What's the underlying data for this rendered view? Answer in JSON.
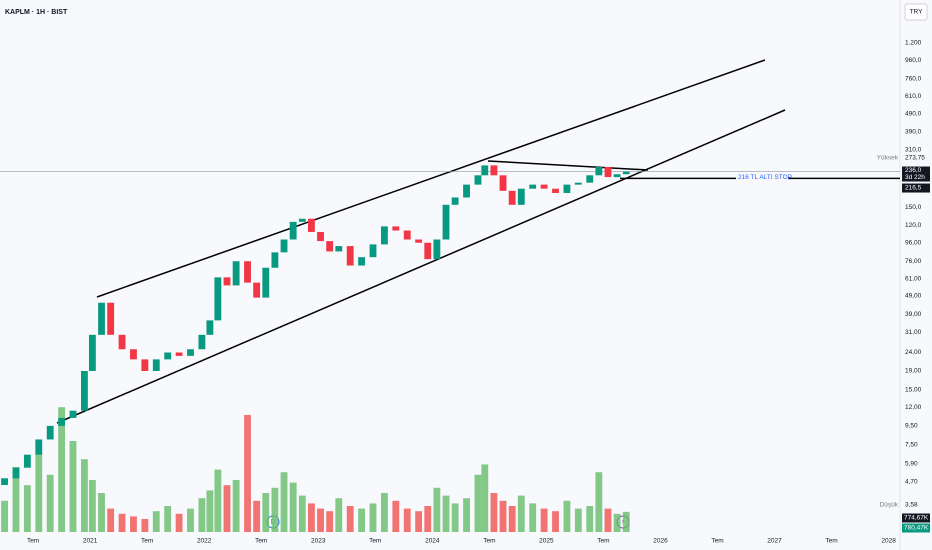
{
  "chart_data": {
    "type": "candlestick",
    "title": "KAPLM · 1H · BIST",
    "currency_button": "TRY",
    "log_scale": true,
    "x": [
      2020.25,
      2020.35,
      2020.45,
      2020.55,
      2020.65,
      2020.75,
      2020.85,
      2020.95,
      2021.02,
      2021.1,
      2021.18,
      2021.28,
      2021.38,
      2021.48,
      2021.58,
      2021.68,
      2021.78,
      2021.88,
      2021.98,
      2022.05,
      2022.12,
      2022.2,
      2022.28,
      2022.38,
      2022.46,
      2022.54,
      2022.62,
      2022.7,
      2022.78,
      2022.86,
      2022.94,
      2023.02,
      2023.1,
      2023.18,
      2023.28,
      2023.38,
      2023.48,
      2023.58,
      2023.68,
      2023.78,
      2023.88,
      2023.96,
      2024.04,
      2024.12,
      2024.2,
      2024.3,
      2024.4,
      2024.46,
      2024.54,
      2024.62,
      2024.7,
      2024.78,
      2024.88,
      2024.98,
      2025.08,
      2025.18,
      2025.28,
      2025.38,
      2025.46,
      2025.54,
      2025.62,
      2025.7
    ],
    "open": [
      4.5,
      4.9,
      5.6,
      6.6,
      8.0,
      9.5,
      10.5,
      11.5,
      19,
      30,
      45,
      30,
      25,
      22,
      19,
      22,
      24,
      23,
      25,
      30,
      36,
      62,
      56,
      76,
      58,
      48,
      70,
      85,
      100,
      125,
      130,
      110,
      98,
      86,
      92,
      72,
      80,
      94,
      118,
      112,
      100,
      96,
      78,
      100,
      155,
      170,
      200,
      225,
      255,
      225,
      185,
      155,
      190,
      200,
      190,
      180,
      200,
      205,
      225,
      250,
      220,
      228
    ],
    "close": [
      4.9,
      5.6,
      6.6,
      8.0,
      9.5,
      10.5,
      11.5,
      19,
      30,
      45,
      30,
      25,
      22,
      19,
      22,
      24,
      23,
      25,
      30,
      36,
      62,
      56,
      76,
      58,
      48,
      70,
      85,
      100,
      125,
      130,
      110,
      98,
      86,
      92,
      72,
      80,
      94,
      118,
      112,
      100,
      96,
      78,
      100,
      155,
      170,
      200,
      225,
      255,
      225,
      185,
      155,
      190,
      200,
      190,
      180,
      200,
      205,
      225,
      250,
      220,
      228,
      236
    ],
    "volume": [
      1200000,
      2500000,
      1800000,
      3000000,
      2200000,
      4800000,
      3500000,
      2800000,
      2000000,
      1500000,
      900000,
      700000,
      600000,
      500000,
      800000,
      1000000,
      700000,
      900000,
      1300000,
      1600000,
      2400000,
      1800000,
      2000000,
      4500000,
      1200000,
      1500000,
      1700000,
      2300000,
      1900000,
      1400000,
      1100000,
      900000,
      800000,
      1300000,
      1000000,
      900000,
      1100000,
      1500000,
      1200000,
      900000,
      800000,
      1000000,
      1700000,
      1400000,
      1100000,
      1300000,
      2200000,
      2600000,
      1500000,
      1200000,
      1000000,
      1400000,
      1100000,
      900000,
      800000,
      1200000,
      900000,
      1000000,
      2300000,
      900000,
      700000,
      774670
    ],
    "up_color": "#089981",
    "down_color": "#f23645",
    "volume_up_color": "#66bb6a",
    "volume_down_color": "#ef5350",
    "xlim": [
      2020.21,
      2028.1
    ],
    "xticks": [
      {
        "value": 2020.5,
        "label": "Tem"
      },
      2021,
      {
        "value": 2021.5,
        "label": "Tem"
      },
      2022,
      {
        "value": 2022.5,
        "label": "Tem"
      },
      2023,
      {
        "value": 2023.5,
        "label": "Tem"
      },
      2024,
      {
        "value": 2024.5,
        "label": "Tem"
      },
      2025,
      {
        "value": 2025.5,
        "label": "Tem"
      },
      2026,
      {
        "value": 2026.5,
        "label": "Tem"
      },
      2027,
      {
        "value": 2027.5,
        "label": "Tem"
      },
      2028
    ],
    "ylim": [
      3.2,
      2060
    ],
    "yticks": [
      {
        "value": 1200,
        "label": "1.200"
      },
      {
        "value": 960,
        "label": "960,0"
      },
      {
        "value": 760,
        "label": "760,0"
      },
      {
        "value": 610,
        "label": "610,0"
      },
      {
        "value": 490,
        "label": "490,0"
      },
      {
        "value": 390,
        "label": "390,0"
      },
      {
        "value": 310,
        "label": "310,0"
      },
      {
        "value": 150,
        "label": "150,0"
      },
      {
        "value": 120,
        "label": "120,0"
      },
      {
        "value": 96,
        "label": "96,00"
      },
      {
        "value": 76,
        "label": "76,00"
      },
      {
        "value": 61,
        "label": "61,00"
      },
      {
        "value": 49,
        "label": "49,00"
      },
      {
        "value": 39,
        "label": "39,00"
      },
      {
        "value": 31,
        "label": "31,00"
      },
      {
        "value": 24,
        "label": "24,00"
      },
      {
        "value": 19,
        "label": "19,00"
      },
      {
        "value": 15,
        "label": "15,00"
      },
      {
        "value": 12,
        "label": "12,00"
      },
      {
        "value": 9.5,
        "label": "9,50"
      },
      {
        "value": 7.5,
        "label": "7,50"
      },
      {
        "value": 5.9,
        "label": "5,90"
      },
      {
        "value": 4.7,
        "label": "4,70"
      }
    ],
    "vlim": [
      0,
      5000000
    ],
    "high_label": "Yüksek",
    "high": {
      "value": 273.75,
      "label": "273,75"
    },
    "low_label": "Düşük",
    "low": {
      "value": 3.58,
      "label": "3,58"
    },
    "last_price": {
      "value": 236,
      "label": "236,0"
    },
    "countdown": "3d 22h",
    "stop_level": {
      "value": 216.5,
      "label": "216,5"
    },
    "stop_annotation": "216 TL ALTI STOP",
    "volume_labels": [
      {
        "value": 774670,
        "label": "774,67K"
      },
      {
        "value": 780470,
        "label": "780,47K"
      }
    ]
  }
}
